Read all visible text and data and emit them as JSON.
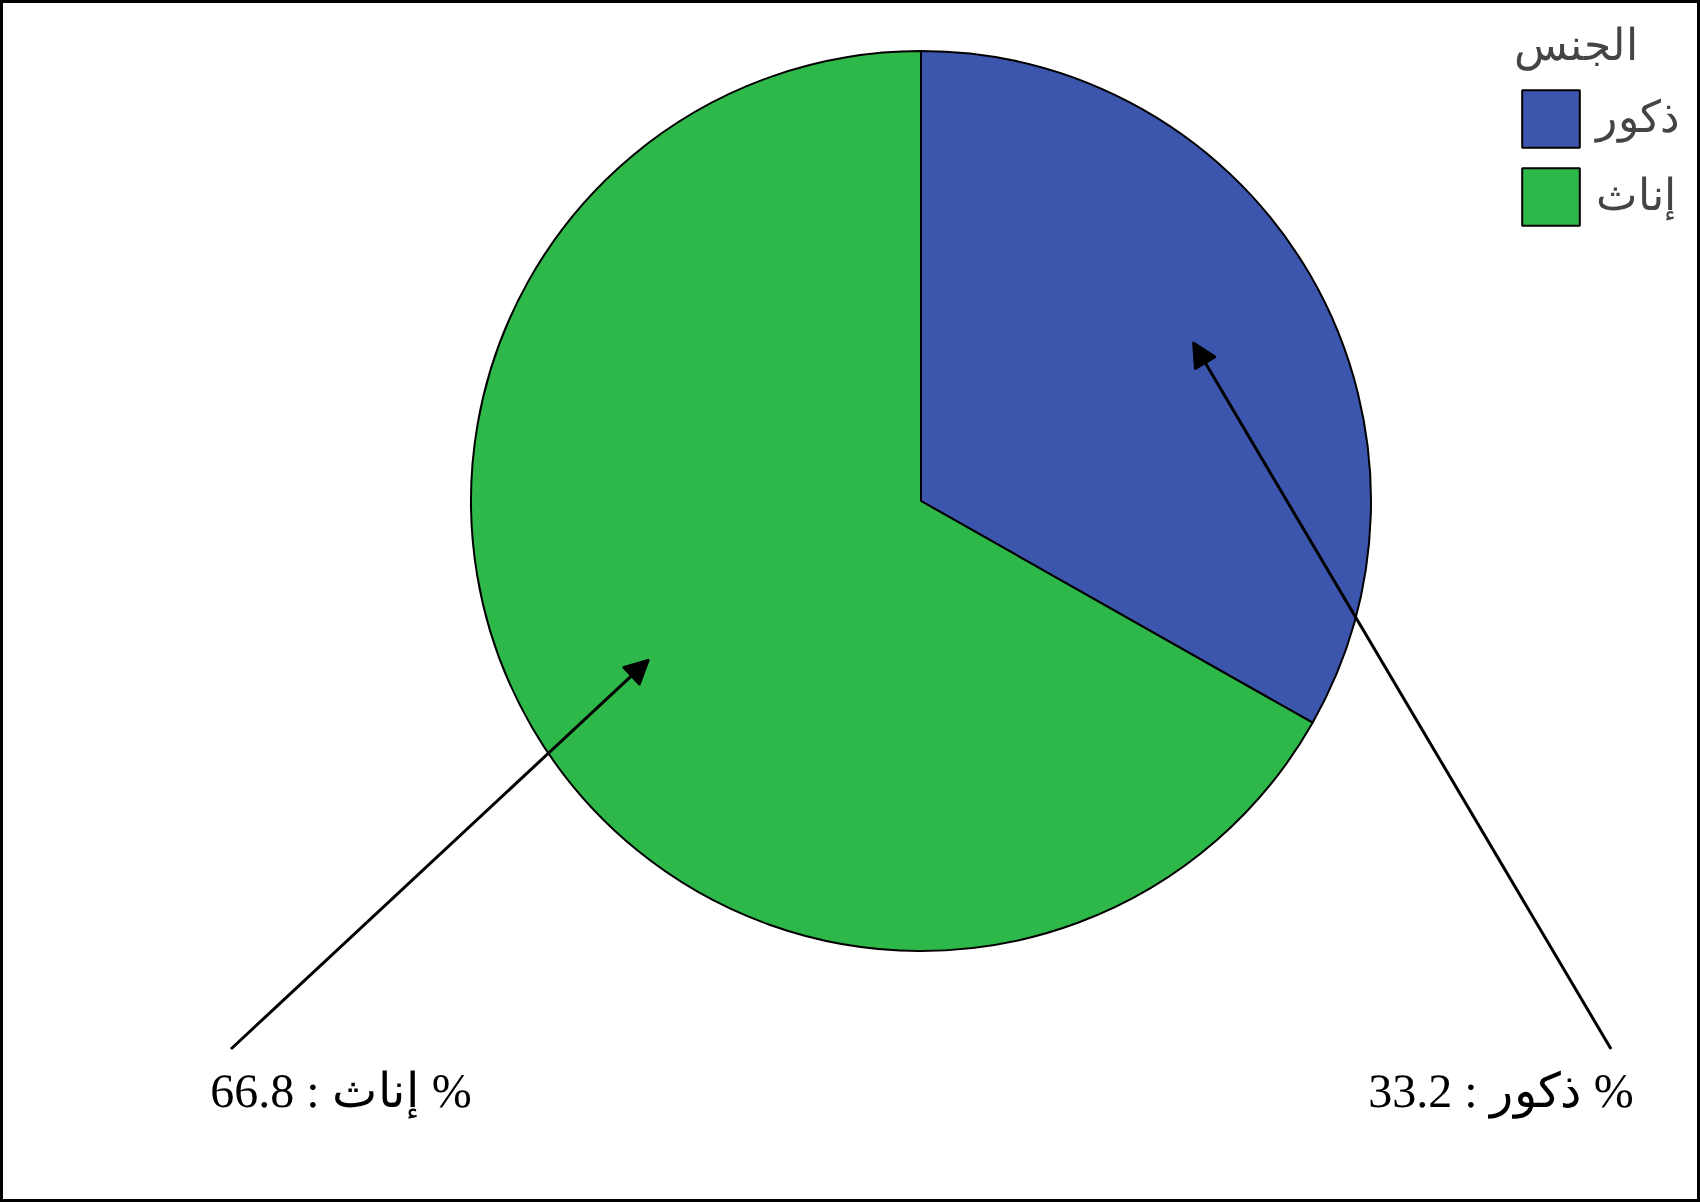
{
  "chart_data": {
    "type": "pie",
    "legend_title": "الجنس",
    "legend": "top right",
    "categories": [
      "ذكور",
      "إناث"
    ],
    "values": [
      33.2,
      66.8
    ],
    "colors": [
      "#3c56ad",
      "#2eb84a"
    ],
    "value_labels": [
      "ذكور : 33.2 %",
      "إناث : 66.8 %"
    ]
  }
}
